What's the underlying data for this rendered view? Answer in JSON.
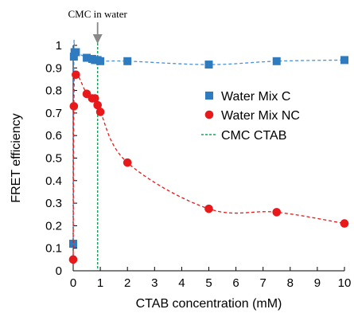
{
  "chart_data": {
    "type": "scatter",
    "xlabel": "CTAB concentration (mM)",
    "ylabel": "FRET efficiency",
    "xlim": [
      0,
      10
    ],
    "ylim": [
      0,
      1
    ],
    "xticks": [
      "0",
      "1",
      "2",
      "3",
      "4",
      "5",
      "6",
      "7",
      "8",
      "9",
      "10"
    ],
    "yticks": [
      "0",
      "0.1",
      "0.2",
      "0.3",
      "0.4",
      "0.5",
      "0.6",
      "0.7",
      "0.8",
      "0.9",
      "1"
    ],
    "grid": false,
    "legend_position": "right",
    "series": [
      {
        "name": "Water Mix C",
        "marker": "square",
        "color": "#2e7bbf",
        "line_color": "#4a90d9",
        "x": [
          0,
          0.025,
          0.05,
          0.1,
          0.5,
          0.7,
          0.8,
          0.9,
          1.0,
          2.0,
          5.0,
          7.5,
          10.0
        ],
        "y": [
          0.12,
          0.95,
          0.97,
          0.97,
          0.945,
          0.94,
          0.935,
          0.935,
          0.93,
          0.93,
          0.915,
          0.93,
          0.935
        ]
      },
      {
        "name": "Water Mix NC",
        "marker": "circle",
        "color": "#e8191a",
        "line_color": "#e8191a",
        "x": [
          0,
          0.025,
          0.1,
          0.5,
          0.7,
          0.8,
          0.9,
          1.0,
          2.0,
          5.0,
          7.5,
          10.0
        ],
        "y": [
          0.05,
          0.73,
          0.87,
          0.785,
          0.765,
          0.765,
          0.735,
          0.705,
          0.48,
          0.275,
          0.26,
          0.21
        ]
      }
    ],
    "reference_line": {
      "name": "CMC CTAB",
      "x": 0.9,
      "color": "#1aa35a"
    },
    "annotation": {
      "text": "CMC in water",
      "x": 0.9,
      "arrow_color": "#888888"
    }
  }
}
